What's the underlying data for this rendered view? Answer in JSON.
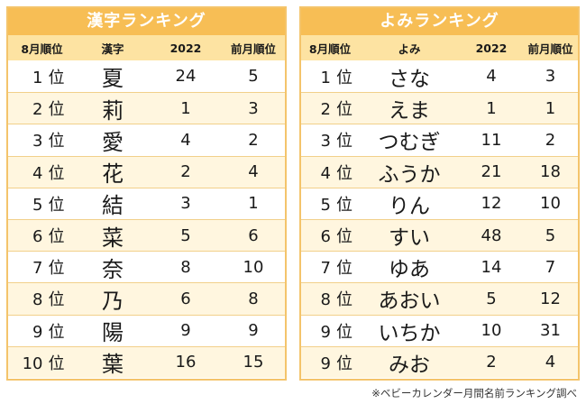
{
  "kanji_ranking": {
    "title": "漢字ランキング",
    "headers": [
      "8月順位",
      "漢字",
      "2022",
      "前月順位"
    ],
    "rows": [
      {
        "rank": "1",
        "unit": "位",
        "name": "夏",
        "y2022": "24",
        "prev": "5"
      },
      {
        "rank": "2",
        "unit": "位",
        "name": "莉",
        "y2022": "1",
        "prev": "3"
      },
      {
        "rank": "3",
        "unit": "位",
        "name": "愛",
        "y2022": "4",
        "prev": "2"
      },
      {
        "rank": "4",
        "unit": "位",
        "name": "花",
        "y2022": "2",
        "prev": "4"
      },
      {
        "rank": "5",
        "unit": "位",
        "name": "結",
        "y2022": "3",
        "prev": "1"
      },
      {
        "rank": "6",
        "unit": "位",
        "name": "菜",
        "y2022": "5",
        "prev": "6"
      },
      {
        "rank": "7",
        "unit": "位",
        "name": "奈",
        "y2022": "8",
        "prev": "10"
      },
      {
        "rank": "8",
        "unit": "位",
        "name": "乃",
        "y2022": "6",
        "prev": "8"
      },
      {
        "rank": "9",
        "unit": "位",
        "name": "陽",
        "y2022": "9",
        "prev": "9"
      },
      {
        "rank": "10",
        "unit": "位",
        "name": "葉",
        "y2022": "16",
        "prev": "15"
      }
    ]
  },
  "yomi_ranking": {
    "title": "よみランキング",
    "headers": [
      "8月順位",
      "よみ",
      "2022",
      "前月順位"
    ],
    "rows": [
      {
        "rank": "1",
        "unit": "位",
        "name": "さな",
        "y2022": "4",
        "prev": "3"
      },
      {
        "rank": "2",
        "unit": "位",
        "name": "えま",
        "y2022": "1",
        "prev": "1"
      },
      {
        "rank": "3",
        "unit": "位",
        "name": "つむぎ",
        "y2022": "11",
        "prev": "2"
      },
      {
        "rank": "4",
        "unit": "位",
        "name": "ふうか",
        "y2022": "21",
        "prev": "18"
      },
      {
        "rank": "5",
        "unit": "位",
        "name": "りん",
        "y2022": "12",
        "prev": "10"
      },
      {
        "rank": "6",
        "unit": "位",
        "name": "すい",
        "y2022": "48",
        "prev": "5"
      },
      {
        "rank": "7",
        "unit": "位",
        "name": "ゆあ",
        "y2022": "14",
        "prev": "7"
      },
      {
        "rank": "8",
        "unit": "位",
        "name": "あおい",
        "y2022": "5",
        "prev": "12"
      },
      {
        "rank": "9",
        "unit": "位",
        "name": "いちか",
        "y2022": "10",
        "prev": "31"
      },
      {
        "rank": "9",
        "unit": "位",
        "name": "みお",
        "y2022": "2",
        "prev": "4"
      }
    ]
  },
  "footnote": "※ベビーカレンダー月間名前ランキング調べ",
  "colors": {
    "title_bg": "#f7be55",
    "header_bg": "#fde3a2",
    "stripe_bg": "#fff6df",
    "border": "#f4c46b"
  }
}
